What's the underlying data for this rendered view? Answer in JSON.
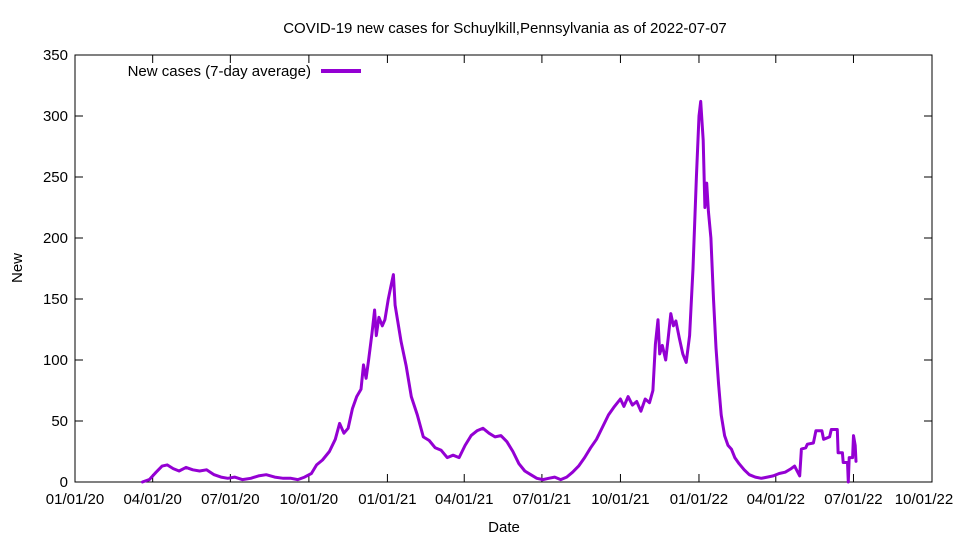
{
  "chart_data": {
    "type": "line",
    "title": "COVID-19 new cases for Schuylkill,Pennsylvania as of 2022-07-07",
    "xlabel": "Date",
    "ylabel": "New",
    "xlim": [
      "2020-01-01",
      "2022-10-01"
    ],
    "ylim": [
      0,
      350
    ],
    "yticks": [
      0,
      50,
      100,
      150,
      200,
      250,
      300,
      350
    ],
    "xticks": [
      {
        "date": "2020-01-01",
        "label": "01/01/20"
      },
      {
        "date": "2020-04-01",
        "label": "04/01/20"
      },
      {
        "date": "2020-07-01",
        "label": "07/01/20"
      },
      {
        "date": "2020-10-01",
        "label": "10/01/20"
      },
      {
        "date": "2021-01-01",
        "label": "01/01/21"
      },
      {
        "date": "2021-04-01",
        "label": "04/01/21"
      },
      {
        "date": "2021-07-01",
        "label": "07/01/21"
      },
      {
        "date": "2021-10-01",
        "label": "10/01/21"
      },
      {
        "date": "2022-01-01",
        "label": "01/01/22"
      },
      {
        "date": "2022-04-01",
        "label": "04/01/22"
      },
      {
        "date": "2022-07-01",
        "label": "07/01/22"
      },
      {
        "date": "2022-10-01",
        "label": "10/01/22"
      }
    ],
    "grid": false,
    "legend": "top-left",
    "series": [
      {
        "name": "New cases (7-day average)",
        "color": "#9400d3",
        "points": [
          [
            "2020-03-20",
            0
          ],
          [
            "2020-03-28",
            2
          ],
          [
            "2020-04-05",
            8
          ],
          [
            "2020-04-12",
            13
          ],
          [
            "2020-04-18",
            14
          ],
          [
            "2020-04-25",
            11
          ],
          [
            "2020-05-02",
            9
          ],
          [
            "2020-05-10",
            12
          ],
          [
            "2020-05-18",
            10
          ],
          [
            "2020-05-26",
            9
          ],
          [
            "2020-06-03",
            10
          ],
          [
            "2020-06-12",
            6
          ],
          [
            "2020-06-20",
            4
          ],
          [
            "2020-06-28",
            3
          ],
          [
            "2020-07-06",
            4
          ],
          [
            "2020-07-15",
            2
          ],
          [
            "2020-07-25",
            3
          ],
          [
            "2020-08-03",
            5
          ],
          [
            "2020-08-12",
            6
          ],
          [
            "2020-08-22",
            4
          ],
          [
            "2020-09-01",
            3
          ],
          [
            "2020-09-10",
            3
          ],
          [
            "2020-09-18",
            2
          ],
          [
            "2020-09-26",
            4
          ],
          [
            "2020-10-04",
            7
          ],
          [
            "2020-10-10",
            14
          ],
          [
            "2020-10-17",
            18
          ],
          [
            "2020-10-25",
            25
          ],
          [
            "2020-11-01",
            35
          ],
          [
            "2020-11-06",
            48
          ],
          [
            "2020-11-11",
            40
          ],
          [
            "2020-11-16",
            44
          ],
          [
            "2020-11-21",
            60
          ],
          [
            "2020-11-26",
            70
          ],
          [
            "2020-12-01",
            76
          ],
          [
            "2020-12-04",
            96
          ],
          [
            "2020-12-07",
            85
          ],
          [
            "2020-12-10",
            100
          ],
          [
            "2020-12-14",
            122
          ],
          [
            "2020-12-17",
            141
          ],
          [
            "2020-12-19",
            120
          ],
          [
            "2020-12-22",
            135
          ],
          [
            "2020-12-26",
            128
          ],
          [
            "2020-12-29",
            133
          ],
          [
            "2021-01-02",
            150
          ],
          [
            "2021-01-05",
            160
          ],
          [
            "2021-01-08",
            170
          ],
          [
            "2021-01-10",
            145
          ],
          [
            "2021-01-13",
            132
          ],
          [
            "2021-01-17",
            115
          ],
          [
            "2021-01-23",
            95
          ],
          [
            "2021-01-29",
            70
          ],
          [
            "2021-02-05",
            55
          ],
          [
            "2021-02-12",
            37
          ],
          [
            "2021-02-19",
            34
          ],
          [
            "2021-02-26",
            28
          ],
          [
            "2021-03-05",
            26
          ],
          [
            "2021-03-12",
            20
          ],
          [
            "2021-03-19",
            22
          ],
          [
            "2021-03-26",
            20
          ],
          [
            "2021-04-02",
            30
          ],
          [
            "2021-04-09",
            38
          ],
          [
            "2021-04-16",
            42
          ],
          [
            "2021-04-23",
            44
          ],
          [
            "2021-04-30",
            40
          ],
          [
            "2021-05-07",
            37
          ],
          [
            "2021-05-14",
            38
          ],
          [
            "2021-05-21",
            33
          ],
          [
            "2021-05-28",
            25
          ],
          [
            "2021-06-04",
            15
          ],
          [
            "2021-06-11",
            9
          ],
          [
            "2021-06-18",
            6
          ],
          [
            "2021-06-25",
            3
          ],
          [
            "2021-07-02",
            2
          ],
          [
            "2021-07-09",
            3
          ],
          [
            "2021-07-16",
            4
          ],
          [
            "2021-07-23",
            2
          ],
          [
            "2021-07-30",
            4
          ],
          [
            "2021-08-06",
            8
          ],
          [
            "2021-08-13",
            13
          ],
          [
            "2021-08-20",
            20
          ],
          [
            "2021-08-27",
            28
          ],
          [
            "2021-09-03",
            35
          ],
          [
            "2021-09-10",
            45
          ],
          [
            "2021-09-17",
            55
          ],
          [
            "2021-09-24",
            62
          ],
          [
            "2021-10-01",
            68
          ],
          [
            "2021-10-05",
            62
          ],
          [
            "2021-10-10",
            70
          ],
          [
            "2021-10-15",
            63
          ],
          [
            "2021-10-20",
            66
          ],
          [
            "2021-10-25",
            58
          ],
          [
            "2021-10-30",
            68
          ],
          [
            "2021-11-04",
            65
          ],
          [
            "2021-11-08",
            75
          ],
          [
            "2021-11-11",
            113
          ],
          [
            "2021-11-14",
            133
          ],
          [
            "2021-11-16",
            105
          ],
          [
            "2021-11-19",
            112
          ],
          [
            "2021-11-23",
            100
          ],
          [
            "2021-11-26",
            118
          ],
          [
            "2021-11-29",
            138
          ],
          [
            "2021-12-02",
            128
          ],
          [
            "2021-12-05",
            132
          ],
          [
            "2021-12-09",
            118
          ],
          [
            "2021-12-13",
            105
          ],
          [
            "2021-12-17",
            98
          ],
          [
            "2021-12-21",
            120
          ],
          [
            "2021-12-25",
            175
          ],
          [
            "2021-12-29",
            250
          ],
          [
            "2022-01-01",
            300
          ],
          [
            "2022-01-03",
            312
          ],
          [
            "2022-01-06",
            280
          ],
          [
            "2022-01-08",
            225
          ],
          [
            "2022-01-10",
            245
          ],
          [
            "2022-01-12",
            222
          ],
          [
            "2022-01-15",
            200
          ],
          [
            "2022-01-18",
            150
          ],
          [
            "2022-01-21",
            110
          ],
          [
            "2022-01-24",
            80
          ],
          [
            "2022-01-27",
            55
          ],
          [
            "2022-01-31",
            38
          ],
          [
            "2022-02-04",
            30
          ],
          [
            "2022-02-08",
            27
          ],
          [
            "2022-02-12",
            20
          ],
          [
            "2022-02-17",
            15
          ],
          [
            "2022-02-23",
            10
          ],
          [
            "2022-03-01",
            6
          ],
          [
            "2022-03-08",
            4
          ],
          [
            "2022-03-15",
            3
          ],
          [
            "2022-03-22",
            4
          ],
          [
            "2022-03-29",
            5
          ],
          [
            "2022-04-05",
            7
          ],
          [
            "2022-04-12",
            8
          ],
          [
            "2022-04-19",
            11
          ],
          [
            "2022-04-23",
            13
          ],
          [
            "2022-04-26",
            9
          ],
          [
            "2022-04-29",
            5
          ],
          [
            "2022-05-01",
            27
          ],
          [
            "2022-05-06",
            28
          ],
          [
            "2022-05-08",
            31
          ],
          [
            "2022-05-15",
            32
          ],
          [
            "2022-05-18",
            42
          ],
          [
            "2022-05-25",
            42
          ],
          [
            "2022-05-27",
            35
          ],
          [
            "2022-06-03",
            37
          ],
          [
            "2022-06-05",
            43
          ],
          [
            "2022-06-12",
            43
          ],
          [
            "2022-06-13",
            24
          ],
          [
            "2022-06-18",
            24
          ],
          [
            "2022-06-19",
            16
          ],
          [
            "2022-06-24",
            16
          ],
          [
            "2022-06-25",
            0
          ],
          [
            "2022-06-26",
            20
          ],
          [
            "2022-06-30",
            20
          ],
          [
            "2022-07-01",
            38
          ],
          [
            "2022-07-03",
            30
          ],
          [
            "2022-07-04",
            17
          ]
        ]
      }
    ]
  }
}
